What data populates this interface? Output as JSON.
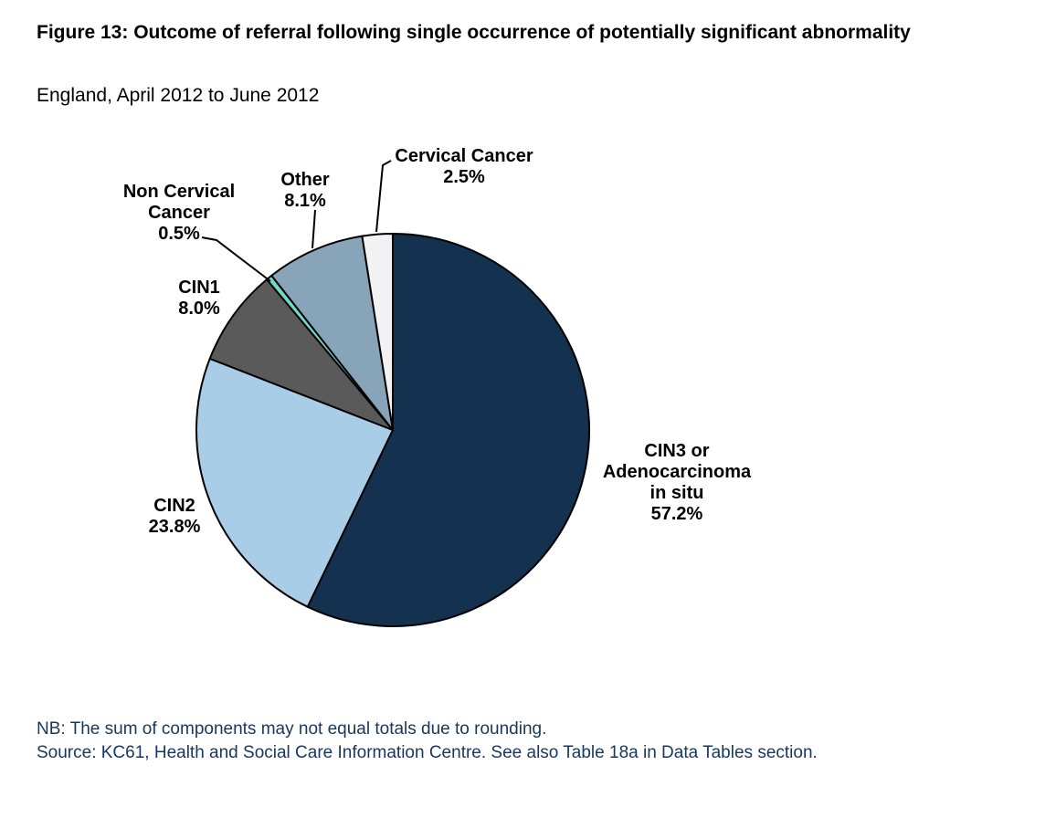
{
  "header": {
    "title": "Figure 13: Outcome of referral following single occurrence of potentially significant abnormality",
    "subtitle": "England, April 2012 to June 2012"
  },
  "chart_data": {
    "type": "pie",
    "title": "Figure 13: Outcome of referral following single occurrence of potentially significant abnormality",
    "subtitle": "England, April 2012 to June 2012",
    "start_angle_deg": 0,
    "direction": "clockwise",
    "outline_color": "#000000",
    "slices": [
      {
        "name": "CIN3 or Adenocarcinoma in situ",
        "value": 57.2,
        "color": "#14324F",
        "label_lines": [
          "CIN3 or",
          "Adenocarcinoma",
          "in situ",
          "57.2%"
        ]
      },
      {
        "name": "CIN2",
        "value": 23.8,
        "color": "#A9CDE6",
        "label_lines": [
          "CIN2",
          "23.8%"
        ]
      },
      {
        "name": "CIN1",
        "value": 8.0,
        "color": "#5A5A5A",
        "label_lines": [
          "CIN1",
          "8.0%"
        ]
      },
      {
        "name": "Non Cervical Cancer",
        "value": 0.5,
        "color": "#6FDAC8",
        "label_lines": [
          "Non Cervical",
          "Cancer",
          "0.5%"
        ]
      },
      {
        "name": "Other",
        "value": 8.1,
        "color": "#88A4B8",
        "label_lines": [
          "Other",
          "8.1%"
        ]
      },
      {
        "name": "Cervical Cancer",
        "value": 2.5,
        "color": "#F2F2F2",
        "label_lines": [
          "Cervical Cancer",
          "2.5%"
        ]
      }
    ]
  },
  "footer": {
    "note": "NB: The sum of components may not equal totals due to rounding.",
    "source": "Source: KC61, Health and Social Care Information Centre. See also Table 18a in Data Tables section."
  }
}
